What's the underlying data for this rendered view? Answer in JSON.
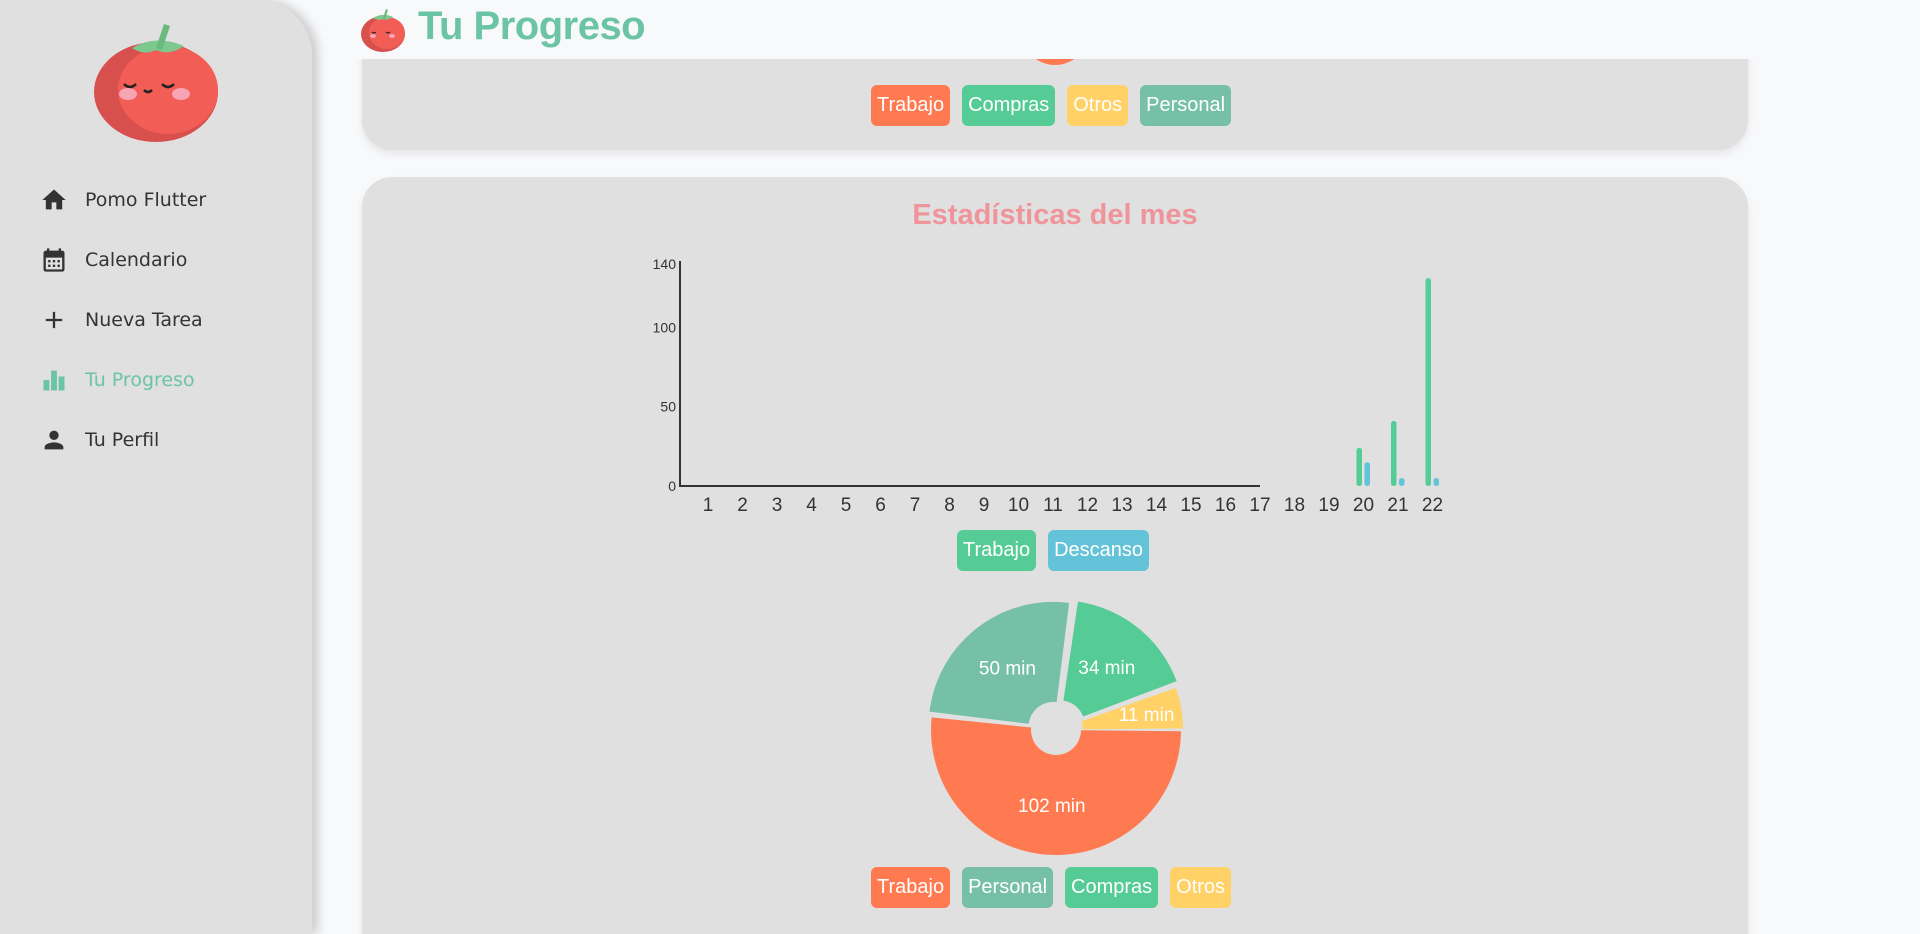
{
  "header": {
    "title": "Tu Progreso",
    "icon": "tomato-icon"
  },
  "sidebar": {
    "logo": "tomato-mascot-logo",
    "items": [
      {
        "label": "Pomo Flutter",
        "icon": "home-icon",
        "active": false
      },
      {
        "label": "Calendario",
        "icon": "calendar-icon",
        "active": false
      },
      {
        "label": "Nueva Tarea",
        "icon": "plus-icon",
        "active": false
      },
      {
        "label": "Tu Progreso",
        "icon": "bar-chart-icon",
        "active": true
      },
      {
        "label": "Tu Perfil",
        "icon": "person-icon",
        "active": false
      }
    ]
  },
  "top_card": {
    "legend": [
      {
        "label": "Trabajo",
        "color": "#ff7a50"
      },
      {
        "label": "Compras",
        "color": "#55cc95"
      },
      {
        "label": "Otros",
        "color": "#ffd166"
      },
      {
        "label": "Personal",
        "color": "#77c0a8"
      }
    ]
  },
  "month": {
    "title": "Estadísticas del mes"
  },
  "colors": {
    "accent": "#6cc4a6",
    "title_pink": "#f0949c",
    "card_bg": "#e0e0e0",
    "work": "#55cc95",
    "rest": "#64c3d8"
  },
  "chart_data": [
    {
      "type": "bar",
      "title": "",
      "xlabel": "",
      "ylabel": "",
      "categories": [
        "1",
        "2",
        "3",
        "4",
        "5",
        "6",
        "7",
        "8",
        "9",
        "10",
        "11",
        "12",
        "13",
        "14",
        "15",
        "16",
        "17",
        "18",
        "19",
        "20",
        "21",
        "22"
      ],
      "y_ticks": [
        0,
        50,
        100,
        140
      ],
      "ylim": [
        0,
        140
      ],
      "series": [
        {
          "name": "Trabajo",
          "color": "#55cc95",
          "values": [
            0,
            0,
            0,
            0,
            0,
            0,
            0,
            0,
            0,
            0,
            0,
            0,
            0,
            0,
            0,
            0,
            0,
            0,
            0,
            24,
            41,
            131
          ]
        },
        {
          "name": "Descanso",
          "color": "#64c3d8",
          "values": [
            0,
            0,
            0,
            0,
            0,
            0,
            0,
            0,
            0,
            0,
            0,
            0,
            0,
            0,
            0,
            0,
            0,
            0,
            0,
            15,
            5,
            5
          ]
        }
      ],
      "legend": [
        {
          "label": "Trabajo",
          "color": "#55cc95"
        },
        {
          "label": "Descanso",
          "color": "#64c3d8"
        }
      ]
    },
    {
      "type": "pie",
      "title": "",
      "slices": [
        {
          "name": "Trabajo",
          "value": 102,
          "label": "102 min",
          "color": "#ff7a50"
        },
        {
          "name": "Personal",
          "value": 50,
          "label": "50 min",
          "color": "#77c0a8"
        },
        {
          "name": "Compras",
          "value": 34,
          "label": "34 min",
          "color": "#55cc95"
        },
        {
          "name": "Otros",
          "value": 11,
          "label": "11 min",
          "color": "#ffd166"
        }
      ],
      "legend": [
        {
          "label": "Trabajo",
          "color": "#ff7a50"
        },
        {
          "label": "Personal",
          "color": "#77c0a8"
        },
        {
          "label": "Compras",
          "color": "#55cc95"
        },
        {
          "label": "Otros",
          "color": "#ffd166"
        }
      ]
    }
  ]
}
